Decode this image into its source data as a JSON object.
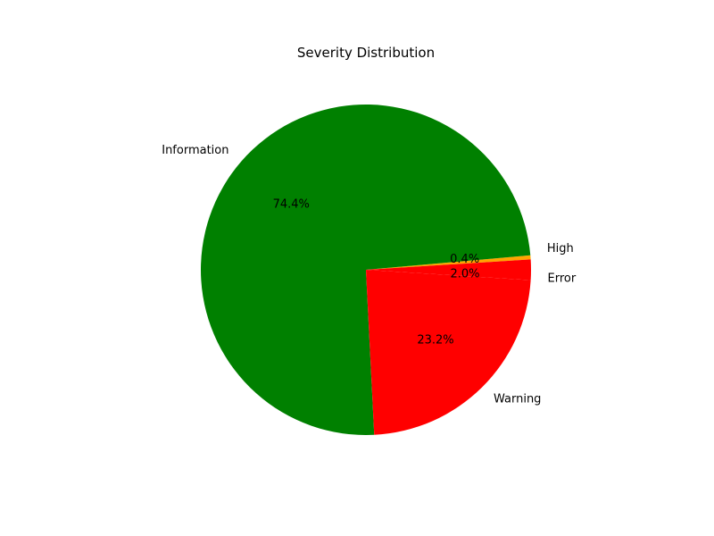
{
  "chart_data": {
    "type": "pie",
    "title": "Severity Distribution",
    "slices": [
      {
        "label": "Information",
        "value": 74.4,
        "pct_label": "74.4%",
        "color": "#008000"
      },
      {
        "label": "Warning",
        "value": 23.2,
        "pct_label": "23.2%",
        "color": "#ff0000"
      },
      {
        "label": "Error",
        "value": 2.0,
        "pct_label": "2.0%",
        "color": "#ff0000"
      },
      {
        "label": "High",
        "value": 0.4,
        "pct_label": "0.4%",
        "color": "#ffa500"
      }
    ]
  }
}
